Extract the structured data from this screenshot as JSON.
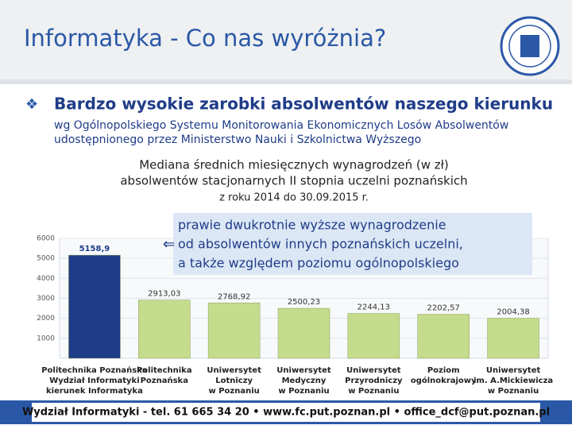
{
  "slide": {
    "title": "Informatyka - Co nas wyróżnia?",
    "bullet": "Bardzo wysokie zarobki absolwentów naszego kierunku",
    "source": [
      "wg Ogólnopolskiego Systemu Monitorowania Ekonomicznych Losów Absolwentów",
      "udostępnionego przez Ministerstwo Nauki i Szkolnictwa Wyższego"
    ],
    "chart_heading": [
      "Mediana średnich miesięcznych wynagrodzeń (w zł)",
      "absolwentów stacjonarnych II stopnia uczelni poznańskich",
      "z roku 2014 do 30.09.2015 r."
    ],
    "callout": [
      "prawie dwukrotnie wyższe wynagrodzenie",
      "od absolwentów innych poznańskich uczelni,",
      "a także względem poziomu ogólnopolskiego"
    ],
    "footer": "Wydział Informatyki - tel. 61 665 34 20 • www.fc.put.poznan.pl • office_dcf@put.poznan.pl"
  },
  "chart_data": {
    "type": "bar",
    "categories": [
      [
        "Politechnika Poznańska",
        "Wydział Informatyki",
        "kierunek Informatyka"
      ],
      [
        "Politechnika",
        "Poznańska"
      ],
      [
        "Uniwersytet",
        "Lotniczy",
        "w Poznaniu"
      ],
      [
        "Uniwersytet",
        "Medyczny",
        "w Poznaniu"
      ],
      [
        "Uniwersytet",
        "Przyrodniczy",
        "w Poznaniu"
      ],
      [
        "Poziom",
        "ogólnokrajowy"
      ],
      [
        "Uniwersytet",
        "im. A.Mickiewicza",
        "w Poznaniu"
      ]
    ],
    "values": [
      5158.9,
      2913.03,
      2768.92,
      2500.23,
      2244.13,
      2202.57,
      2004.38
    ],
    "value_labels": [
      "5158,9",
      "2913,03",
      "2768,92",
      "2500,23",
      "2244,13",
      "2202,57",
      "2004,38"
    ],
    "colors": [
      "#1f3c88",
      "#c4dc8c",
      "#c4dc8c",
      "#c4dc8c",
      "#c4dc8c",
      "#c4dc8c",
      "#c4dc8c"
    ],
    "ylim": [
      0,
      6000
    ],
    "yticks": [
      1000,
      2000,
      3000,
      4000,
      5000,
      6000
    ]
  }
}
